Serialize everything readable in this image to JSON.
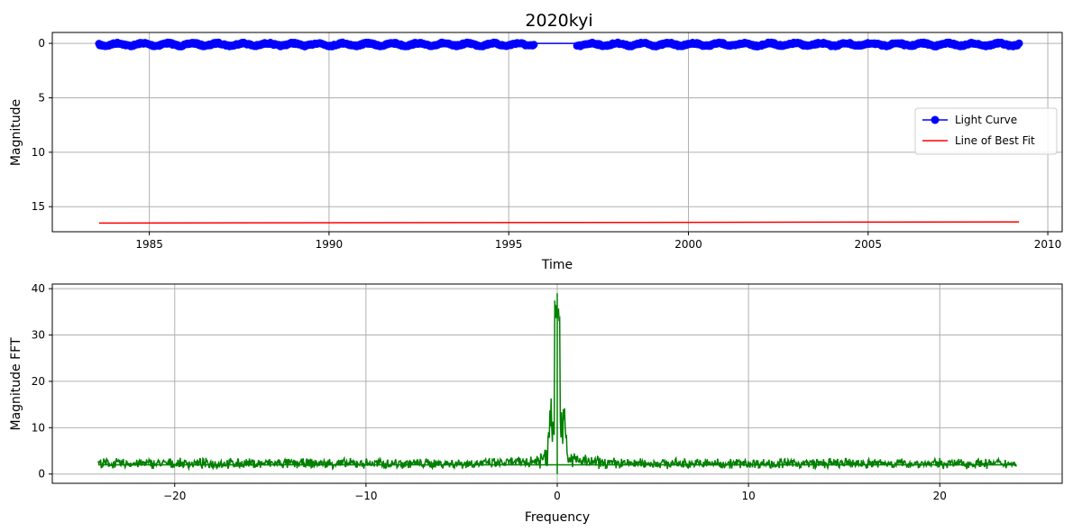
{
  "chart_data": [
    {
      "type": "line",
      "title": "2020kyi",
      "xlabel": "Time",
      "ylabel": "Magnitude",
      "xlim": [
        1982.3,
        2010.4
      ],
      "ylim": [
        17.3,
        -1.0
      ],
      "y_inverted": true,
      "xticks": [
        1985,
        1990,
        1995,
        2000,
        2005,
        2010
      ],
      "yticks": [
        0,
        5,
        10,
        15
      ],
      "grid": true,
      "legend_position": "center-right",
      "series": [
        {
          "name": "Light Curve",
          "color": "#0000ff",
          "marker": "circle",
          "segments": [
            {
              "x_start": 1983.6,
              "x_end": 1995.7,
              "mean": 0.1,
              "amplitude": 0.15
            },
            {
              "x_start": 1996.9,
              "x_end": 2009.2,
              "mean": 0.1,
              "amplitude": 0.15
            }
          ],
          "gap_line": {
            "x": [
              1995.7,
              1996.9
            ],
            "y": [
              0.0,
              0.0
            ]
          }
        },
        {
          "name": "Line of Best Fit",
          "color": "#ff0000",
          "x": [
            1983.6,
            2009.2
          ],
          "y": [
            16.5,
            16.4
          ]
        }
      ]
    },
    {
      "type": "line",
      "title": "",
      "xlabel": "Frequency",
      "ylabel": "Magnitude FFT",
      "xlim": [
        -26.4,
        26.4
      ],
      "ylim": [
        -2.0,
        41.0
      ],
      "xticks": [
        -20,
        -10,
        0,
        10,
        20
      ],
      "yticks": [
        0,
        10,
        20,
        30,
        40
      ],
      "grid": true,
      "series": [
        {
          "color": "#008000",
          "x_range": [
            -24,
            24
          ],
          "baseline": 1.7,
          "peak": {
            "x": 0,
            "y": 39
          },
          "floor_line": {
            "y": 2.0
          },
          "zero_stem": {
            "x": 0,
            "y": [
              0,
              39
            ]
          }
        }
      ]
    }
  ]
}
